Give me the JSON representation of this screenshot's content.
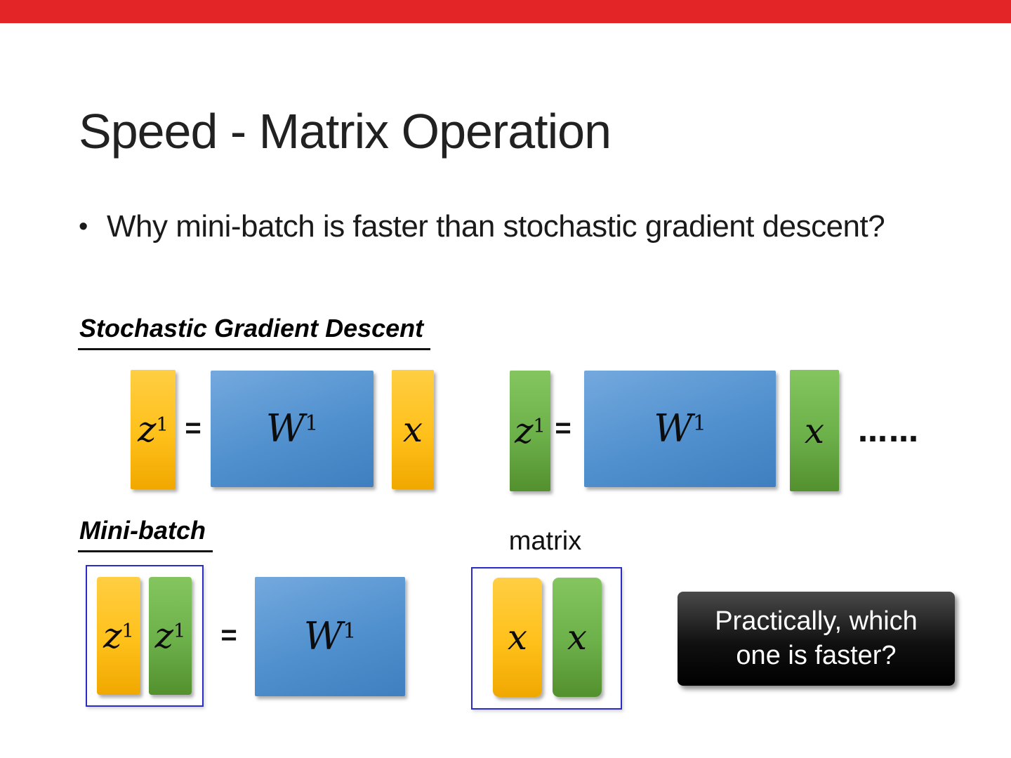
{
  "slide": {
    "title": "Speed - Matrix Operation",
    "bullet": {
      "glyph": "•",
      "text": "Why mini-batch is faster than stochastic gradient descent?"
    },
    "sgd_section": {
      "heading": "Stochastic Gradient Descent",
      "ellipsis": "……"
    },
    "minibatch_section": {
      "heading": "Mini-batch",
      "matrix_label": "matrix"
    },
    "callout": {
      "text": "Practically, which one is faster?"
    }
  },
  "symbols": {
    "z": "z",
    "W": "W",
    "x": "x",
    "superscript": "1",
    "equals": "="
  },
  "colors": {
    "top_bar": "#E32528",
    "yellow_vector": "#FFC01A",
    "green_vector": "#6CB04A",
    "blue_matrix": "#5090CE",
    "group_outline": "#2B2BC8",
    "callout_background": "#000000",
    "callout_text": "#FFFFFF"
  }
}
